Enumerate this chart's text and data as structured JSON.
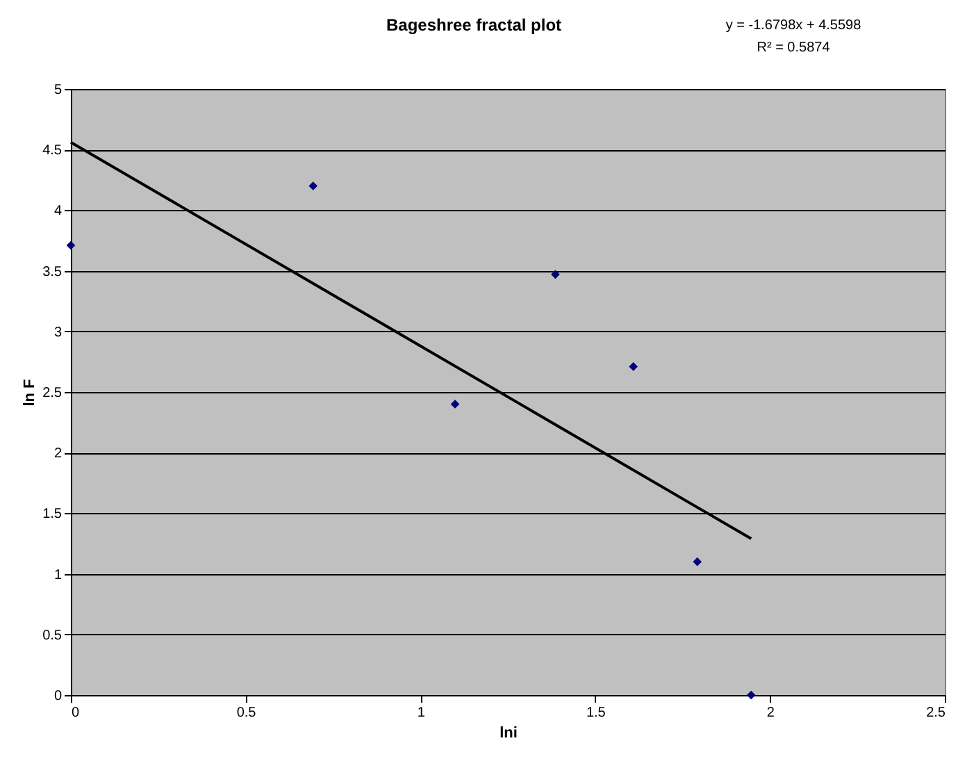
{
  "chart_data": {
    "type": "scatter",
    "title": "Bageshree fractal plot",
    "xlabel": "lni",
    "ylabel": "ln F",
    "annotations": [
      "y = -1.6798x + 4.5598",
      "R² = 0.5874"
    ],
    "xlim": [
      0,
      2.5
    ],
    "xticks": [
      0,
      0.5,
      1,
      1.5,
      2,
      2.5
    ],
    "ylim": [
      0,
      5
    ],
    "yticks": [
      0,
      0.5,
      1,
      1.5,
      2,
      2.5,
      3,
      3.5,
      4,
      4.5,
      5
    ],
    "grid": "y",
    "series": [
      {
        "type": "scatter",
        "color": "#000080",
        "marker": "diamond",
        "x": [
          0,
          0.693,
          1.099,
          1.386,
          1.609,
          1.792,
          1.946
        ],
        "values": [
          3.71,
          4.2,
          2.4,
          3.47,
          2.71,
          1.1,
          0
        ]
      },
      {
        "type": "line",
        "color": "#000000",
        "marker": "none",
        "x": [
          0,
          1.946
        ],
        "values": [
          4.56,
          1.29
        ]
      }
    ]
  }
}
